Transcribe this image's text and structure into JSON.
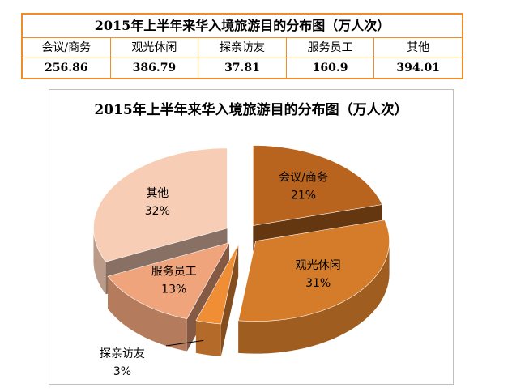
{
  "table": {
    "title": "2015年上半年来华入境旅游目的分布图（万人次）",
    "headers": [
      "会议/商务",
      "观光休闲",
      "探亲访友",
      "服务员工",
      "其他"
    ],
    "values": [
      "256.86",
      "386.79",
      "37.81",
      "160.9",
      "394.01"
    ]
  },
  "chart_data": {
    "type": "pie",
    "title": "2015年上半年来华入境旅游目的分布图（万人次）",
    "slices": [
      {
        "label": "会议/商务",
        "value": 256.86,
        "percent": "21%",
        "color": "#b8641f"
      },
      {
        "label": "观光休闲",
        "value": 386.79,
        "percent": "31%",
        "color": "#d57c2a"
      },
      {
        "label": "探亲访友",
        "value": 37.81,
        "percent": "3%",
        "color": "#f08e36"
      },
      {
        "label": "服务员工",
        "value": 160.9,
        "percent": "13%",
        "color": "#f0a47c"
      },
      {
        "label": "其他",
        "value": 394.01,
        "percent": "32%",
        "color": "#f8cdb6"
      }
    ],
    "exploded": true,
    "view": "3d"
  }
}
